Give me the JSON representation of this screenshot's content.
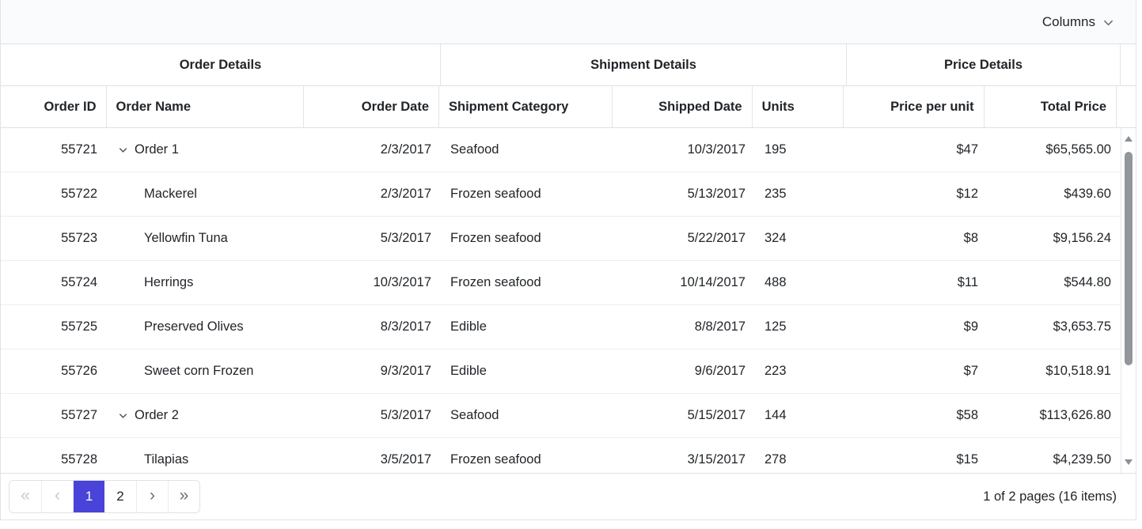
{
  "toolbar": {
    "columns_label": "Columns"
  },
  "grid": {
    "column_groups": [
      {
        "label": "Order Details"
      },
      {
        "label": "Shipment Details"
      },
      {
        "label": "Price Details"
      }
    ],
    "columns": [
      {
        "label": "Order ID",
        "align": "right"
      },
      {
        "label": "Order Name",
        "align": "left"
      },
      {
        "label": "Order Date",
        "align": "right"
      },
      {
        "label": "Shipment Category",
        "align": "left"
      },
      {
        "label": "Shipped Date",
        "align": "right"
      },
      {
        "label": "Units",
        "align": "left"
      },
      {
        "label": "Price per unit",
        "align": "right"
      },
      {
        "label": "Total Price",
        "align": "right"
      }
    ],
    "rows": [
      {
        "order_id": "55721",
        "expandable": true,
        "order_name": "Order 1",
        "order_date": "2/3/2017",
        "shipment_category": "Seafood",
        "shipped_date": "10/3/2017",
        "units": "195",
        "price_per_unit": "$47",
        "total_price": "$65,565.00"
      },
      {
        "order_id": "55722",
        "expandable": false,
        "order_name": "Mackerel",
        "order_date": "2/3/2017",
        "shipment_category": "Frozen seafood",
        "shipped_date": "5/13/2017",
        "units": "235",
        "price_per_unit": "$12",
        "total_price": "$439.60"
      },
      {
        "order_id": "55723",
        "expandable": false,
        "order_name": "Yellowfin Tuna",
        "order_date": "5/3/2017",
        "shipment_category": "Frozen seafood",
        "shipped_date": "5/22/2017",
        "units": "324",
        "price_per_unit": "$8",
        "total_price": "$9,156.24"
      },
      {
        "order_id": "55724",
        "expandable": false,
        "order_name": "Herrings",
        "order_date": "10/3/2017",
        "shipment_category": "Frozen seafood",
        "shipped_date": "10/14/2017",
        "units": "488",
        "price_per_unit": "$11",
        "total_price": "$544.80"
      },
      {
        "order_id": "55725",
        "expandable": false,
        "order_name": "Preserved Olives",
        "order_date": "8/3/2017",
        "shipment_category": "Edible",
        "shipped_date": "8/8/2017",
        "units": "125",
        "price_per_unit": "$9",
        "total_price": "$3,653.75"
      },
      {
        "order_id": "55726",
        "expandable": false,
        "order_name": "Sweet corn Frozen",
        "order_date": "9/3/2017",
        "shipment_category": "Edible",
        "shipped_date": "9/6/2017",
        "units": "223",
        "price_per_unit": "$7",
        "total_price": "$10,518.91"
      },
      {
        "order_id": "55727",
        "expandable": true,
        "order_name": "Order 2",
        "order_date": "5/3/2017",
        "shipment_category": "Seafood",
        "shipped_date": "5/15/2017",
        "units": "144",
        "price_per_unit": "$58",
        "total_price": "$113,626.80"
      },
      {
        "order_id": "55728",
        "expandable": false,
        "order_name": "Tilapias",
        "order_date": "3/5/2017",
        "shipment_category": "Frozen seafood",
        "shipped_date": "3/15/2017",
        "units": "278",
        "price_per_unit": "$15",
        "total_price": "$4,239.50"
      }
    ]
  },
  "pager": {
    "buttons": [
      {
        "glyph": "«",
        "type": "first",
        "state": "disabled"
      },
      {
        "glyph": "‹",
        "type": "prev",
        "state": "disabled"
      },
      {
        "glyph": "1",
        "type": "page",
        "state": "active"
      },
      {
        "glyph": "2",
        "type": "page",
        "state": "normal"
      },
      {
        "glyph": "›",
        "type": "next",
        "state": "normal"
      },
      {
        "glyph": "»",
        "type": "last",
        "state": "normal"
      }
    ],
    "info": "1 of 2 pages (16 items)"
  },
  "icons": {
    "columns_dropdown": "chevron-down-icon",
    "row_expand": "chevron-down-icon",
    "scroll_up": "triangle-up-icon",
    "scroll_down": "triangle-down-icon"
  },
  "colors": {
    "accent": "#4a43d9",
    "header_text": "#212529",
    "disabled_nav": "#c3cad1",
    "nav_chevron": "#69727b",
    "scroll_thumb": "#92969b",
    "toolbar_bg": "#fafbfc"
  }
}
